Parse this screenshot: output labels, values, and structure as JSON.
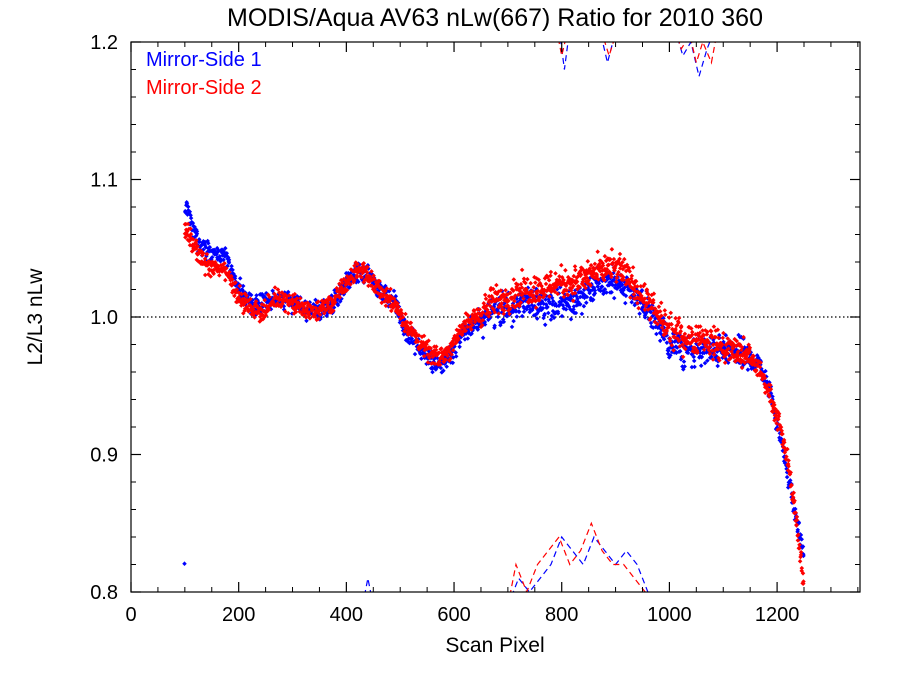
{
  "chart_data": {
    "type": "scatter",
    "title": "MODIS/Aqua AV63 nLw(667) Ratio for 2010 360",
    "xlabel": "Scan Pixel",
    "ylabel": "L2/L3 nLw",
    "xlim": [
      0,
      1354
    ],
    "ylim": [
      0.8,
      1.2
    ],
    "x_ticks": [
      "0",
      "200",
      "400",
      "600",
      "800",
      "1000",
      "1200"
    ],
    "y_ticks": [
      "0.8",
      "0.9",
      "1.0",
      "1.1",
      "1.2"
    ],
    "reference_line": {
      "y": 1.0,
      "style": "dotted"
    },
    "legend": {
      "position": "top-left"
    },
    "colors": {
      "ms1": "#0000ff",
      "ms2": "#ff0000",
      "axes": "#000000"
    },
    "series": [
      {
        "name": "Mirror-Side 1",
        "color": "#0000ff",
        "x": [
          100,
          125,
          150,
          175,
          200,
          225,
          250,
          275,
          300,
          325,
          350,
          375,
          400,
          425,
          440,
          460,
          490,
          510,
          530,
          550,
          570,
          590,
          610,
          640,
          670,
          700,
          730,
          760,
          790,
          820,
          850,
          880,
          910,
          940,
          970,
          1000,
          1030,
          1060,
          1090,
          1120,
          1150,
          1170,
          1190,
          1205,
          1220,
          1235,
          1250
        ],
        "y": [
          1.08,
          1.055,
          1.045,
          1.045,
          1.02,
          1.01,
          1.01,
          1.015,
          1.01,
          1.005,
          1.005,
          1.01,
          1.025,
          1.035,
          1.03,
          1.02,
          1.01,
          0.99,
          0.98,
          0.97,
          0.965,
          0.97,
          0.985,
          0.995,
          1.005,
          1.005,
          1.01,
          1.01,
          1.01,
          1.01,
          1.02,
          1.025,
          1.025,
          1.015,
          1.0,
          0.98,
          0.975,
          0.975,
          0.975,
          0.975,
          0.97,
          0.965,
          0.94,
          0.915,
          0.885,
          0.855,
          0.825
        ]
      },
      {
        "name": "Mirror-Side 2",
        "color": "#ff0000",
        "x": [
          100,
          125,
          150,
          175,
          200,
          225,
          250,
          275,
          300,
          325,
          350,
          375,
          400,
          425,
          440,
          460,
          490,
          510,
          530,
          550,
          570,
          590,
          610,
          640,
          670,
          700,
          730,
          760,
          790,
          820,
          850,
          880,
          910,
          940,
          970,
          1000,
          1030,
          1060,
          1090,
          1120,
          1150,
          1170,
          1190,
          1205,
          1220,
          1235,
          1250
        ],
        "y": [
          1.065,
          1.045,
          1.035,
          1.035,
          1.015,
          1.005,
          1.005,
          1.015,
          1.01,
          1.005,
          1.005,
          1.01,
          1.025,
          1.035,
          1.03,
          1.02,
          1.01,
          0.995,
          0.985,
          0.975,
          0.97,
          0.975,
          0.99,
          1.0,
          1.01,
          1.015,
          1.02,
          1.02,
          1.025,
          1.025,
          1.03,
          1.035,
          1.035,
          1.02,
          1.005,
          0.99,
          0.985,
          0.985,
          0.98,
          0.975,
          0.97,
          0.96,
          0.94,
          0.92,
          0.895,
          0.855,
          0.805
        ]
      }
    ],
    "offscale_lines": [
      {
        "color": "#0000ff",
        "x": [
          430,
          440,
          450
        ],
        "y": [
          0.79,
          0.81,
          0.79
        ]
      },
      {
        "color": "#0000ff",
        "x": [
          700,
          720,
          740,
          760,
          780,
          800,
          820,
          840,
          860,
          880,
          900,
          920,
          940,
          960,
          980
        ],
        "y": [
          0.79,
          0.81,
          0.8,
          0.81,
          0.82,
          0.84,
          0.83,
          0.82,
          0.84,
          0.83,
          0.82,
          0.83,
          0.82,
          0.8,
          0.79
        ]
      },
      {
        "color": "#ff0000",
        "x": [
          700,
          715,
          735,
          755,
          775,
          795,
          815,
          835,
          855,
          875,
          895,
          915,
          935,
          955,
          975
        ],
        "y": [
          0.79,
          0.82,
          0.8,
          0.82,
          0.83,
          0.84,
          0.82,
          0.83,
          0.85,
          0.83,
          0.82,
          0.82,
          0.81,
          0.8,
          0.79
        ]
      },
      {
        "color": "#0000ff",
        "x": [
          795,
          805,
          815,
          870,
          885,
          895,
          905
        ],
        "y": [
          1.21,
          1.18,
          1.21,
          1.21,
          1.185,
          1.2,
          1.21
        ]
      },
      {
        "color": "#ff0000",
        "x": [
          790,
          800,
          812,
          872,
          888,
          900,
          910
        ],
        "y": [
          1.21,
          1.19,
          1.21,
          1.21,
          1.19,
          1.205,
          1.21
        ]
      },
      {
        "color": "#0000ff",
        "x": [
          1010,
          1025,
          1040,
          1055,
          1070,
          1085
        ],
        "y": [
          1.21,
          1.19,
          1.2,
          1.175,
          1.195,
          1.21
        ]
      },
      {
        "color": "#ff0000",
        "x": [
          1010,
          1022,
          1038,
          1050,
          1062,
          1078,
          1090
        ],
        "y": [
          1.21,
          1.195,
          1.205,
          1.185,
          1.2,
          1.185,
          1.21
        ]
      }
    ]
  }
}
